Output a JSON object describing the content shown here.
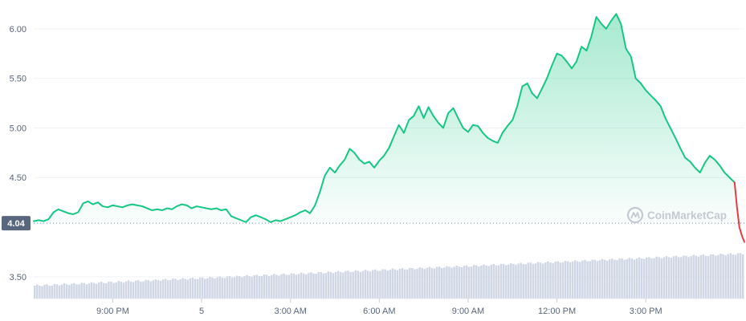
{
  "watermark": "CoinMarketCap",
  "colors": {
    "up": "#16c784",
    "down": "#ea3943",
    "fill_top": "#16c784",
    "volume": "#cfd6e4",
    "grid": "#eff2f5",
    "axis_text": "#58667e",
    "price_tag_bg": "#58667e",
    "price_tag_text": "#ffffff"
  },
  "chart_data": {
    "type": "line",
    "title": "",
    "xlabel": "",
    "ylabel": "",
    "x_unit": "hours since first data point",
    "x_tick_labels": [
      {
        "x": 2.67,
        "label": "9:00 PM"
      },
      {
        "x": 5.67,
        "label": "5"
      },
      {
        "x": 8.67,
        "label": "3:00 AM"
      },
      {
        "x": 11.67,
        "label": "6:00 AM"
      },
      {
        "x": 14.67,
        "label": "9:00 AM"
      },
      {
        "x": 17.67,
        "label": "12:00 PM"
      },
      {
        "x": 20.67,
        "label": "3:00 PM"
      }
    ],
    "y_ticks": [
      "3.50",
      "4.50",
      "5.00",
      "5.50",
      "6.00"
    ],
    "ylim": [
      3.28,
      6.25
    ],
    "xlim": [
      0,
      24
    ],
    "reference_price": {
      "value": 4.04,
      "label": "4.04"
    },
    "grid": true,
    "series": [
      {
        "points": [
          [
            0.0,
            4.06
          ],
          [
            0.17,
            4.07
          ],
          [
            0.33,
            4.06
          ],
          [
            0.5,
            4.08
          ],
          [
            0.67,
            4.15
          ],
          [
            0.83,
            4.18
          ],
          [
            1.0,
            4.16
          ],
          [
            1.17,
            4.14
          ],
          [
            1.33,
            4.13
          ],
          [
            1.5,
            4.15
          ],
          [
            1.67,
            4.24
          ],
          [
            1.83,
            4.26
          ],
          [
            2.0,
            4.23
          ],
          [
            2.17,
            4.25
          ],
          [
            2.33,
            4.21
          ],
          [
            2.5,
            4.2
          ],
          [
            2.67,
            4.22
          ],
          [
            2.83,
            4.21
          ],
          [
            3.0,
            4.2
          ],
          [
            3.17,
            4.22
          ],
          [
            3.33,
            4.23
          ],
          [
            3.5,
            4.22
          ],
          [
            3.67,
            4.21
          ],
          [
            3.83,
            4.19
          ],
          [
            4.0,
            4.17
          ],
          [
            4.17,
            4.18
          ],
          [
            4.33,
            4.17
          ],
          [
            4.5,
            4.19
          ],
          [
            4.67,
            4.18
          ],
          [
            4.83,
            4.21
          ],
          [
            5.0,
            4.23
          ],
          [
            5.17,
            4.22
          ],
          [
            5.33,
            4.19
          ],
          [
            5.5,
            4.21
          ],
          [
            5.67,
            4.2
          ],
          [
            5.83,
            4.19
          ],
          [
            6.0,
            4.18
          ],
          [
            6.17,
            4.19
          ],
          [
            6.33,
            4.17
          ],
          [
            6.5,
            4.18
          ],
          [
            6.67,
            4.11
          ],
          [
            6.83,
            4.09
          ],
          [
            7.0,
            4.07
          ],
          [
            7.17,
            4.05
          ],
          [
            7.33,
            4.1
          ],
          [
            7.5,
            4.12
          ],
          [
            7.67,
            4.1
          ],
          [
            7.83,
            4.08
          ],
          [
            8.0,
            4.05
          ],
          [
            8.17,
            4.07
          ],
          [
            8.33,
            4.06
          ],
          [
            8.5,
            4.08
          ],
          [
            8.67,
            4.1
          ],
          [
            8.83,
            4.12
          ],
          [
            9.0,
            4.15
          ],
          [
            9.17,
            4.17
          ],
          [
            9.33,
            4.14
          ],
          [
            9.5,
            4.22
          ],
          [
            9.67,
            4.36
          ],
          [
            9.83,
            4.52
          ],
          [
            10.0,
            4.6
          ],
          [
            10.17,
            4.55
          ],
          [
            10.33,
            4.62
          ],
          [
            10.5,
            4.68
          ],
          [
            10.67,
            4.79
          ],
          [
            10.83,
            4.75
          ],
          [
            11.0,
            4.68
          ],
          [
            11.17,
            4.64
          ],
          [
            11.33,
            4.66
          ],
          [
            11.5,
            4.6
          ],
          [
            11.67,
            4.67
          ],
          [
            11.83,
            4.72
          ],
          [
            12.0,
            4.8
          ],
          [
            12.17,
            4.92
          ],
          [
            12.33,
            5.03
          ],
          [
            12.5,
            4.95
          ],
          [
            12.67,
            5.08
          ],
          [
            12.83,
            5.12
          ],
          [
            13.0,
            5.22
          ],
          [
            13.17,
            5.1
          ],
          [
            13.33,
            5.21
          ],
          [
            13.5,
            5.12
          ],
          [
            13.67,
            5.05
          ],
          [
            13.83,
            5.0
          ],
          [
            14.0,
            5.15
          ],
          [
            14.17,
            5.2
          ],
          [
            14.33,
            5.1
          ],
          [
            14.5,
            5.0
          ],
          [
            14.67,
            4.96
          ],
          [
            14.83,
            5.03
          ],
          [
            15.0,
            5.02
          ],
          [
            15.17,
            4.95
          ],
          [
            15.33,
            4.9
          ],
          [
            15.5,
            4.87
          ],
          [
            15.67,
            4.85
          ],
          [
            15.83,
            4.95
          ],
          [
            16.0,
            5.02
          ],
          [
            16.17,
            5.08
          ],
          [
            16.33,
            5.22
          ],
          [
            16.5,
            5.42
          ],
          [
            16.67,
            5.45
          ],
          [
            16.83,
            5.35
          ],
          [
            17.0,
            5.3
          ],
          [
            17.17,
            5.4
          ],
          [
            17.33,
            5.5
          ],
          [
            17.5,
            5.63
          ],
          [
            17.67,
            5.75
          ],
          [
            17.83,
            5.73
          ],
          [
            18.0,
            5.67
          ],
          [
            18.17,
            5.6
          ],
          [
            18.33,
            5.67
          ],
          [
            18.5,
            5.82
          ],
          [
            18.67,
            5.78
          ],
          [
            18.83,
            5.92
          ],
          [
            19.0,
            6.12
          ],
          [
            19.17,
            6.05
          ],
          [
            19.33,
            6.0
          ],
          [
            19.5,
            6.08
          ],
          [
            19.67,
            6.15
          ],
          [
            19.83,
            6.05
          ],
          [
            20.0,
            5.8
          ],
          [
            20.17,
            5.72
          ],
          [
            20.33,
            5.5
          ],
          [
            20.5,
            5.45
          ],
          [
            20.67,
            5.38
          ],
          [
            20.83,
            5.33
          ],
          [
            21.0,
            5.28
          ],
          [
            21.17,
            5.22
          ],
          [
            21.33,
            5.1
          ],
          [
            21.5,
            5.0
          ],
          [
            21.67,
            4.9
          ],
          [
            21.83,
            4.8
          ],
          [
            22.0,
            4.7
          ],
          [
            22.17,
            4.66
          ],
          [
            22.33,
            4.6
          ],
          [
            22.5,
            4.55
          ],
          [
            22.67,
            4.65
          ],
          [
            22.83,
            4.72
          ],
          [
            23.0,
            4.68
          ],
          [
            23.17,
            4.62
          ],
          [
            23.33,
            4.55
          ],
          [
            23.5,
            4.5
          ],
          [
            23.67,
            4.45
          ]
        ]
      },
      {
        "points": [
          [
            23.67,
            4.45
          ],
          [
            23.75,
            4.2
          ],
          [
            23.83,
            4.0
          ],
          [
            23.92,
            3.91
          ],
          [
            24.0,
            3.85
          ]
        ]
      }
    ]
  }
}
